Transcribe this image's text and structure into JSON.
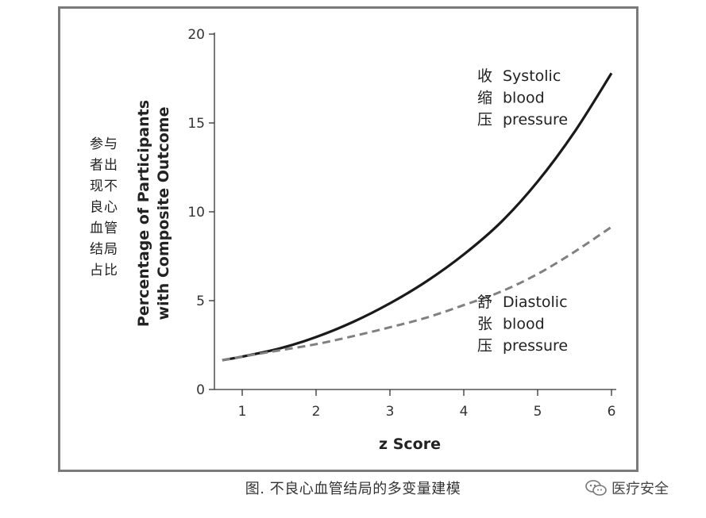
{
  "chart_data": {
    "type": "line",
    "title": "",
    "xlabel": "z Score",
    "ylabel": [
      "Percentage of Participants",
      "with Composite Outcome"
    ],
    "ylabel_cn": [
      "参与",
      "者出",
      "现不",
      "良心",
      "血管",
      "结局",
      "占比"
    ],
    "xlim": [
      0.7,
      6
    ],
    "ylim": [
      0,
      20
    ],
    "xticks": [
      1,
      2,
      3,
      4,
      5,
      6
    ],
    "yticks": [
      0,
      5,
      10,
      15,
      20
    ],
    "grid": false,
    "series": [
      {
        "name": "Systolic blood pressure",
        "cn_label": [
          "收",
          "缩",
          "压"
        ],
        "en_label": [
          "Systolic",
          "blood",
          "pressure"
        ],
        "style": "solid",
        "color": "#1a1a1a",
        "x": [
          0.73,
          1.0,
          1.5,
          2.0,
          2.5,
          3.0,
          3.5,
          4.0,
          4.5,
          5.0,
          5.5,
          6.0
        ],
        "values": [
          1.65,
          1.85,
          2.3,
          2.95,
          3.8,
          4.85,
          6.1,
          7.6,
          9.4,
          11.7,
          14.5,
          17.8
        ]
      },
      {
        "name": "Diastolic blood pressure",
        "cn_label": [
          "舒",
          "张",
          "压"
        ],
        "en_label": [
          "Diastolic",
          "blood",
          "pressure"
        ],
        "style": "dashed",
        "color": "#808080",
        "x": [
          0.73,
          1.0,
          1.5,
          2.0,
          2.5,
          3.0,
          3.5,
          4.0,
          4.5,
          5.0,
          5.5,
          6.0
        ],
        "values": [
          1.65,
          1.85,
          2.2,
          2.55,
          3.0,
          3.5,
          4.05,
          4.75,
          5.5,
          6.5,
          7.75,
          9.15
        ]
      }
    ]
  },
  "caption": "图. 不良心血管结局的多变量建模",
  "watermark": {
    "text": "医疗安全",
    "icon": "wechat-icon"
  }
}
